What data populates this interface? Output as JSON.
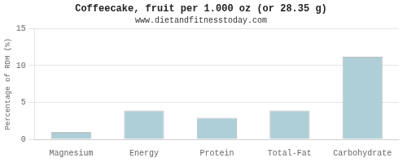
{
  "chart_data": {
    "type": "bar",
    "title": "Coffeecake, fruit per 1.000 oz (or 28.35 g)",
    "subtitle": "www.dietandfitnesstoday.com",
    "categories": [
      "Magnesium",
      "Energy",
      "Protein",
      "Total-Fat",
      "Carbohydrate"
    ],
    "values": [
      1.0,
      3.9,
      2.9,
      3.9,
      11.2
    ],
    "color": "#aecfd8",
    "ylabel": "Percentage of RDH (%)",
    "ylim": [
      0,
      15
    ],
    "yticks": [
      0,
      5,
      10,
      15
    ],
    "grid": true
  }
}
